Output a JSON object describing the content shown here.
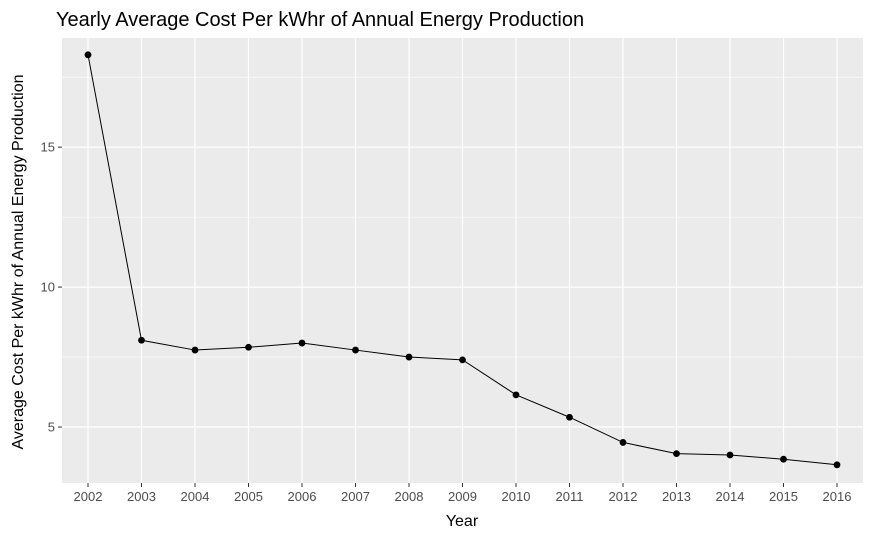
{
  "chart_data": {
    "type": "line",
    "title": "Yearly Average Cost Per kWhr of Annual Energy Production",
    "xlabel": "Year",
    "ylabel": "Average Cost Per kWhr of Annual Energy Production",
    "categories": [
      "2002",
      "2003",
      "2004",
      "2005",
      "2006",
      "2007",
      "2008",
      "2009",
      "2010",
      "2011",
      "2012",
      "2013",
      "2014",
      "2015",
      "2016"
    ],
    "values": [
      18.3,
      8.1,
      7.75,
      7.85,
      8.0,
      7.75,
      7.5,
      7.4,
      6.15,
      5.35,
      4.45,
      4.05,
      4.0,
      3.85,
      3.65
    ],
    "yticks": [
      5,
      10,
      15
    ],
    "ylim": [
      3.0,
      18.9
    ],
    "grid": true,
    "panel_background": "#ebebeb",
    "grid_color": "#ffffff",
    "line_color": "#000000",
    "point_color": "#000000"
  }
}
